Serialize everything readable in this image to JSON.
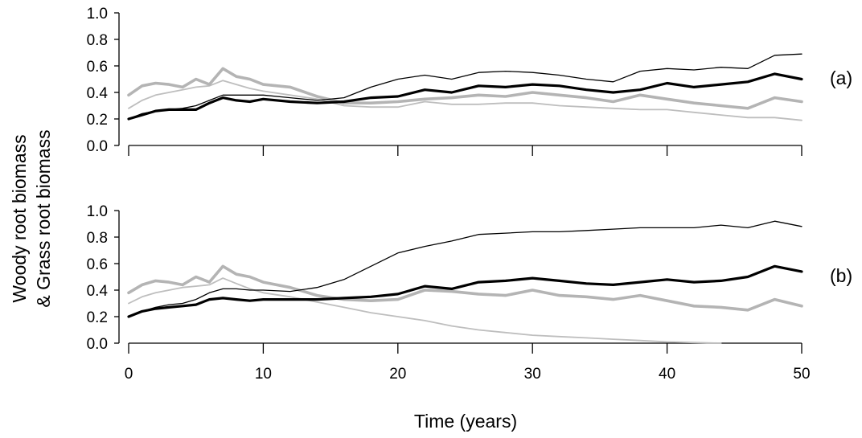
{
  "chart_data": {
    "type": "line",
    "y_title_line1": "Woody root biomass",
    "y_title_line2": "& Grass root biomass",
    "xlabel": "Time (years)",
    "xlim": [
      0,
      50
    ],
    "ylim": [
      0,
      1
    ],
    "x_ticks": [
      "0",
      "10",
      "20",
      "30",
      "40",
      "50"
    ],
    "y_ticks": [
      "0.0",
      "0.2",
      "0.4",
      "0.6",
      "0.8",
      "1.0"
    ],
    "grid": false,
    "panels": [
      {
        "label": "(a)",
        "series": [
          {
            "style": "thin-black",
            "color": "#000000",
            "x": [
              0,
              1,
              2,
              3,
              4,
              5,
              6,
              7,
              8,
              9,
              10,
              12,
              14,
              16,
              18,
              20,
              22,
              24,
              26,
              28,
              30,
              32,
              34,
              36,
              38,
              40,
              42,
              44,
              46,
              48,
              50
            ],
            "y": [
              0.2,
              0.24,
              0.26,
              0.27,
              0.28,
              0.3,
              0.34,
              0.38,
              0.38,
              0.38,
              0.38,
              0.36,
              0.34,
              0.36,
              0.44,
              0.5,
              0.53,
              0.5,
              0.55,
              0.56,
              0.55,
              0.53,
              0.5,
              0.48,
              0.56,
              0.58,
              0.57,
              0.59,
              0.58,
              0.68,
              0.69
            ]
          },
          {
            "style": "thick-black",
            "color": "#000000",
            "x": [
              0,
              1,
              2,
              3,
              4,
              5,
              6,
              7,
              8,
              9,
              10,
              12,
              14,
              16,
              18,
              20,
              22,
              24,
              26,
              28,
              30,
              32,
              34,
              36,
              38,
              40,
              42,
              44,
              46,
              48,
              50
            ],
            "y": [
              0.2,
              0.23,
              0.26,
              0.27,
              0.27,
              0.27,
              0.32,
              0.36,
              0.34,
              0.33,
              0.35,
              0.33,
              0.32,
              0.33,
              0.36,
              0.37,
              0.42,
              0.4,
              0.45,
              0.44,
              0.46,
              0.45,
              0.42,
              0.4,
              0.42,
              0.47,
              0.44,
              0.46,
              0.48,
              0.54,
              0.5
            ]
          },
          {
            "style": "thick-gray",
            "color": "#b4b4b4",
            "x": [
              0,
              1,
              2,
              3,
              4,
              5,
              6,
              7,
              8,
              9,
              10,
              12,
              14,
              16,
              18,
              20,
              22,
              24,
              26,
              28,
              30,
              32,
              34,
              36,
              38,
              40,
              42,
              44,
              46,
              48,
              50
            ],
            "y": [
              0.38,
              0.45,
              0.47,
              0.46,
              0.44,
              0.5,
              0.46,
              0.58,
              0.52,
              0.5,
              0.46,
              0.44,
              0.37,
              0.32,
              0.32,
              0.33,
              0.35,
              0.36,
              0.38,
              0.37,
              0.4,
              0.38,
              0.36,
              0.33,
              0.38,
              0.35,
              0.32,
              0.3,
              0.28,
              0.36,
              0.33
            ]
          },
          {
            "style": "thin-gray",
            "color": "#bebebe",
            "x": [
              0,
              1,
              2,
              3,
              4,
              5,
              6,
              7,
              8,
              9,
              10,
              12,
              14,
              16,
              18,
              20,
              22,
              24,
              26,
              28,
              30,
              32,
              34,
              36,
              38,
              40,
              42,
              44,
              46,
              48,
              50
            ],
            "y": [
              0.28,
              0.34,
              0.38,
              0.4,
              0.42,
              0.44,
              0.45,
              0.49,
              0.46,
              0.43,
              0.41,
              0.38,
              0.35,
              0.3,
              0.29,
              0.29,
              0.33,
              0.31,
              0.31,
              0.32,
              0.32,
              0.3,
              0.29,
              0.28,
              0.27,
              0.27,
              0.25,
              0.23,
              0.21,
              0.21,
              0.19
            ]
          }
        ]
      },
      {
        "label": "(b)",
        "series": [
          {
            "style": "thin-black",
            "color": "#000000",
            "x": [
              0,
              1,
              2,
              3,
              4,
              5,
              6,
              7,
              8,
              9,
              10,
              12,
              14,
              16,
              18,
              20,
              22,
              24,
              26,
              28,
              30,
              32,
              34,
              36,
              38,
              40,
              42,
              44,
              46,
              48,
              50
            ],
            "y": [
              0.2,
              0.24,
              0.27,
              0.29,
              0.3,
              0.33,
              0.38,
              0.41,
              0.41,
              0.4,
              0.4,
              0.39,
              0.42,
              0.48,
              0.58,
              0.68,
              0.73,
              0.77,
              0.82,
              0.83,
              0.84,
              0.84,
              0.85,
              0.86,
              0.87,
              0.87,
              0.87,
              0.89,
              0.87,
              0.92,
              0.88
            ]
          },
          {
            "style": "thick-black",
            "color": "#000000",
            "x": [
              0,
              1,
              2,
              3,
              4,
              5,
              6,
              7,
              8,
              9,
              10,
              12,
              14,
              16,
              18,
              20,
              22,
              24,
              26,
              28,
              30,
              32,
              34,
              36,
              38,
              40,
              42,
              44,
              46,
              48,
              50
            ],
            "y": [
              0.2,
              0.24,
              0.26,
              0.27,
              0.28,
              0.29,
              0.33,
              0.34,
              0.33,
              0.32,
              0.33,
              0.33,
              0.33,
              0.34,
              0.35,
              0.37,
              0.43,
              0.41,
              0.46,
              0.47,
              0.49,
              0.47,
              0.45,
              0.44,
              0.46,
              0.48,
              0.46,
              0.47,
              0.5,
              0.58,
              0.54
            ]
          },
          {
            "style": "thick-gray",
            "color": "#b4b4b4",
            "x": [
              0,
              1,
              2,
              3,
              4,
              5,
              6,
              7,
              8,
              9,
              10,
              12,
              14,
              16,
              18,
              20,
              22,
              24,
              26,
              28,
              30,
              32,
              34,
              36,
              38,
              40,
              42,
              44,
              46,
              48,
              50
            ],
            "y": [
              0.38,
              0.44,
              0.47,
              0.46,
              0.44,
              0.5,
              0.46,
              0.58,
              0.52,
              0.5,
              0.46,
              0.42,
              0.36,
              0.33,
              0.32,
              0.33,
              0.4,
              0.39,
              0.37,
              0.36,
              0.4,
              0.36,
              0.35,
              0.33,
              0.36,
              0.32,
              0.28,
              0.27,
              0.25,
              0.33,
              0.28
            ]
          },
          {
            "style": "thin-gray",
            "color": "#bebebe",
            "x": [
              0,
              1,
              2,
              3,
              4,
              5,
              6,
              7,
              8,
              9,
              10,
              12,
              14,
              16,
              18,
              20,
              22,
              24,
              26,
              28,
              30,
              32,
              34,
              36,
              38,
              40,
              42,
              44
            ],
            "y": [
              0.3,
              0.35,
              0.38,
              0.4,
              0.42,
              0.43,
              0.44,
              0.49,
              0.45,
              0.41,
              0.38,
              0.35,
              0.31,
              0.27,
              0.23,
              0.2,
              0.17,
              0.13,
              0.1,
              0.08,
              0.06,
              0.05,
              0.04,
              0.03,
              0.02,
              0.01,
              0.005,
              0.0
            ]
          }
        ]
      }
    ]
  }
}
